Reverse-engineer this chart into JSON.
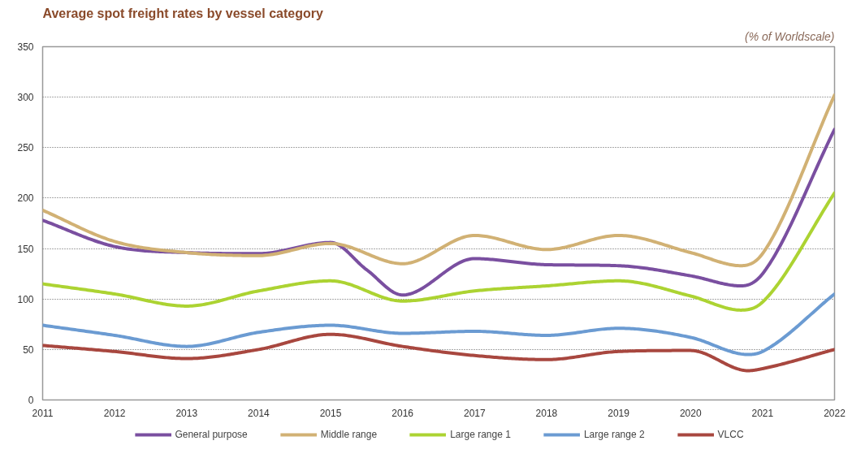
{
  "chart_data": {
    "type": "line",
    "title": "Average spot freight rates by vessel category",
    "subtitle": "(% of Worldscale)",
    "xlim": [
      2011,
      2022
    ],
    "xticks": [
      2011,
      2012,
      2013,
      2014,
      2015,
      2016,
      2017,
      2018,
      2019,
      2020,
      2021,
      2022
    ],
    "ylim": [
      0,
      350
    ],
    "yticks": [
      0,
      50,
      100,
      150,
      200,
      250,
      300,
      350
    ],
    "grid": "y",
    "legend": "bottom",
    "line_style": "solid",
    "marker": "none",
    "series": [
      {
        "name": "General purpose",
        "color": "#7a4fa0",
        "x": [
          2011,
          2012,
          2013,
          2014,
          2015,
          2015.5,
          2016,
          2017,
          2018,
          2019,
          2020,
          2020.7,
          2021,
          2022
        ],
        "values": [
          178,
          152,
          146,
          145,
          156,
          129,
          104,
          140,
          134,
          133,
          123,
          113,
          125,
          268
        ]
      },
      {
        "name": "Middle range",
        "color": "#d1b174",
        "x": [
          2011,
          2012,
          2013,
          2014,
          2015,
          2016,
          2017,
          2018,
          2019,
          2020,
          2020.7,
          2021,
          2022
        ],
        "values": [
          188,
          157,
          146,
          143,
          155,
          135,
          163,
          149,
          163,
          146,
          133,
          145,
          302
        ]
      },
      {
        "name": "Large range 1",
        "color": "#acd332",
        "x": [
          2011,
          2012,
          2013,
          2014,
          2015,
          2016,
          2017,
          2018,
          2019,
          2020,
          2020.7,
          2021,
          2022
        ],
        "values": [
          115,
          105,
          93,
          108,
          118,
          98,
          108,
          113,
          118,
          103,
          89,
          97,
          205
        ]
      },
      {
        "name": "Large range 2",
        "color": "#6b9bd2",
        "x": [
          2011,
          2012,
          2013,
          2014,
          2015,
          2016,
          2017,
          2018,
          2019,
          2020,
          2020.8,
          2021,
          2022
        ],
        "values": [
          74,
          64,
          53,
          67,
          74,
          66,
          68,
          64,
          71,
          62,
          45,
          48,
          105
        ]
      },
      {
        "name": "VLCC",
        "color": "#a8473f",
        "x": [
          2011,
          2012,
          2013,
          2014,
          2015,
          2016,
          2017,
          2018,
          2019,
          2020,
          2020.8,
          2021,
          2022
        ],
        "values": [
          54,
          48,
          41,
          50,
          65,
          53,
          44,
          40,
          48,
          49,
          29,
          31,
          50
        ]
      }
    ]
  }
}
